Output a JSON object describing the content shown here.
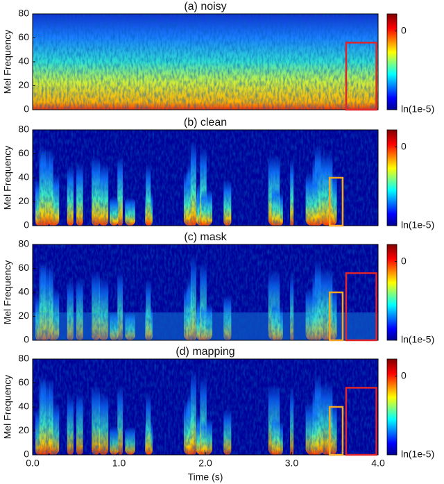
{
  "chart_data": [
    {
      "type": "spectrogram",
      "title": "(a) noisy",
      "ylabel": "Mel Frequency",
      "xlim": [
        0,
        4
      ],
      "ylim": [
        0,
        80
      ],
      "yticks": [
        0,
        20,
        40,
        60,
        80
      ],
      "clim": [
        -11.51,
        2.5
      ],
      "cticks": [
        0,
        {
          "value": -11.51,
          "label": "ln(1e-5)"
        }
      ],
      "highlights": [
        {
          "x": [
            3.63,
            3.98
          ],
          "y": [
            0,
            56
          ],
          "color": "#e0262b"
        }
      ]
    },
    {
      "type": "spectrogram",
      "title": "(b) clean",
      "ylabel": "Mel Frequency",
      "xlim": [
        0,
        4
      ],
      "ylim": [
        0,
        80
      ],
      "yticks": [
        0,
        20,
        40,
        60,
        80
      ],
      "clim": [
        -11.51,
        2.5
      ],
      "cticks": [
        0,
        {
          "value": -11.51,
          "label": "ln(1e-5)"
        }
      ],
      "highlights": [
        {
          "x": [
            3.44,
            3.59
          ],
          "y": [
            0,
            40
          ],
          "color": "#f5a623"
        }
      ]
    },
    {
      "type": "spectrogram",
      "title": "(c) mask",
      "ylabel": "Mel Frequency",
      "xlim": [
        0,
        4
      ],
      "ylim": [
        0,
        80
      ],
      "yticks": [
        0,
        20,
        40,
        60,
        80
      ],
      "clim": [
        -11.51,
        2.5
      ],
      "cticks": [
        0,
        {
          "value": -11.51,
          "label": "ln(1e-5)"
        }
      ],
      "highlights": [
        {
          "x": [
            3.44,
            3.59
          ],
          "y": [
            0,
            40
          ],
          "color": "#f5a623"
        },
        {
          "x": [
            3.63,
            3.98
          ],
          "y": [
            0,
            56
          ],
          "color": "#e0262b"
        }
      ]
    },
    {
      "type": "spectrogram",
      "title": "(d) mapping",
      "ylabel": "Mel Frequency",
      "xlabel": "Time (s)",
      "xlim": [
        0,
        4
      ],
      "ylim": [
        0,
        80
      ],
      "yticks": [
        0,
        20,
        40,
        60,
        80
      ],
      "xticks": [
        {
          "value": 0,
          "label": "0.0"
        },
        {
          "value": 1,
          "label": "1.0"
        },
        {
          "value": 2,
          "label": "2.0"
        },
        {
          "value": 3,
          "label": "3.0"
        },
        {
          "value": 4,
          "label": "4.0"
        }
      ],
      "clim": [
        -11.51,
        2.5
      ],
      "cticks": [
        0,
        {
          "value": -11.51,
          "label": "ln(1e-5)"
        }
      ],
      "highlights": [
        {
          "x": [
            3.44,
            3.59
          ],
          "y": [
            0,
            40
          ],
          "color": "#f5a623"
        },
        {
          "x": [
            3.63,
            3.98
          ],
          "y": [
            0,
            56
          ],
          "color": "#e0262b"
        }
      ]
    }
  ]
}
